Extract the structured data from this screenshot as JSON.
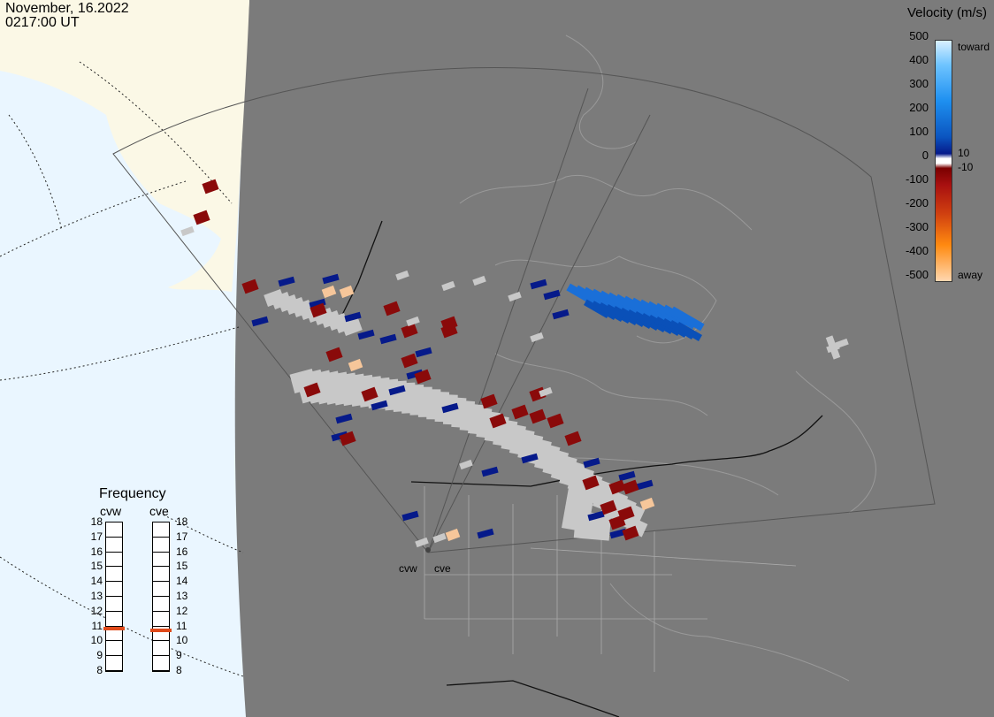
{
  "header": {
    "date": "November, 16.2022",
    "time": "0217:00 UT"
  },
  "velocity_legend": {
    "title": "Velocity (m/s)",
    "ticks": [
      "500",
      "400",
      "300",
      "200",
      "100",
      "0",
      "-100",
      "-200",
      "-300",
      "-400",
      "-500"
    ],
    "labels": {
      "toward": "toward",
      "away": "away",
      "pos": "10",
      "neg": "-10"
    }
  },
  "frequency_panel": {
    "title": "Frequency",
    "radars": [
      {
        "name": "cvw",
        "value": 10.8
      },
      {
        "name": "cve",
        "value": 10.7
      }
    ],
    "scale": [
      "18",
      "17",
      "16",
      "15",
      "14",
      "13",
      "12",
      "11",
      "10",
      "9",
      "8"
    ]
  },
  "radar_sites": {
    "west": "cvw",
    "east": "cve"
  },
  "colors": {
    "background_map": "#7b7b7b",
    "ocean": "#eaf6ff",
    "land_day": "#fbf8e6",
    "ground_scatter": "#c8c8c8",
    "toward_dark": "#061a8a",
    "toward_bright": "#1a6fd8",
    "away_dark": "#8a0a0a",
    "away_light": "#f6c69a",
    "freq_marker": "#e04a1a"
  }
}
